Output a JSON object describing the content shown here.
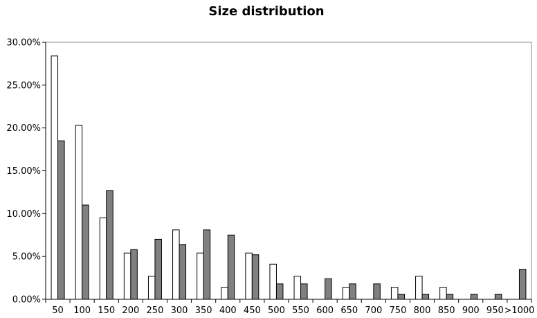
{
  "chart_data": {
    "type": "bar",
    "title": "Size distribution",
    "xlabel": "",
    "ylabel": "",
    "ylim": [
      0,
      0.3
    ],
    "y_ticks": [
      "0.00%",
      "5.00%",
      "10.00%",
      "15.00%",
      "20.00%",
      "25.00%",
      "30.00%"
    ],
    "grid": false,
    "legend": "none",
    "categories": [
      "50",
      "100",
      "150",
      "200",
      "250",
      "300",
      "350",
      "400",
      "450",
      "500",
      "550",
      "600",
      "650",
      "700",
      "750",
      "800",
      "850",
      "900",
      "950",
      ">1000"
    ],
    "series": [
      {
        "color": "#ffffff",
        "values": [
          0.284,
          0.203,
          0.095,
          0.054,
          0.027,
          0.081,
          0.054,
          0.014,
          0.054,
          0.041,
          0.027,
          0.0,
          0.014,
          0.0,
          0.014,
          0.027,
          0.014,
          0.0,
          0.0,
          0.0
        ]
      },
      {
        "color": "#808080",
        "values": [
          0.185,
          0.11,
          0.127,
          0.058,
          0.07,
          0.064,
          0.081,
          0.075,
          0.052,
          0.018,
          0.018,
          0.024,
          0.018,
          0.018,
          0.006,
          0.006,
          0.006,
          0.006,
          0.006,
          0.035
        ]
      }
    ]
  }
}
